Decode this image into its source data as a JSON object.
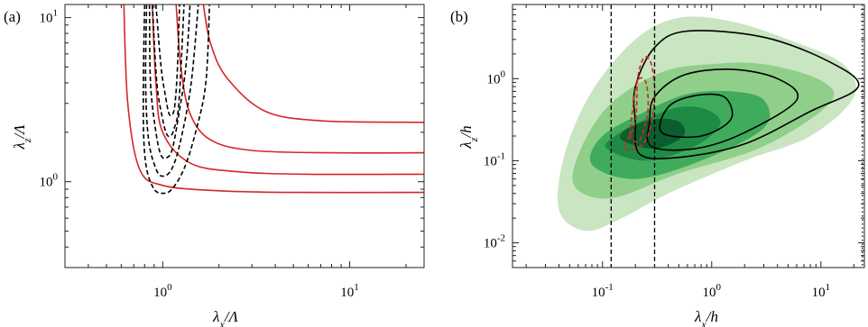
{
  "chart_data": [
    {
      "panel_label": "(a)",
      "type": "line",
      "xscale": "log",
      "yscale": "log",
      "xlim": [
        0.3,
        25
      ],
      "ylim": [
        0.3,
        12
      ],
      "xticks": [
        {
          "value": 1,
          "base": "10",
          "exp": "0"
        },
        {
          "value": 10,
          "base": "10",
          "exp": "1"
        }
      ],
      "yticks": [
        {
          "value": 1,
          "base": "10",
          "exp": "0"
        },
        {
          "value": 10,
          "base": "10",
          "exp": "1"
        }
      ],
      "xlabel": {
        "main": "λ",
        "sub": "x",
        "tail": "/Λ"
      },
      "ylabel": {
        "main": "λ",
        "sub": "z",
        "tail": "/Λ"
      },
      "grid": false,
      "series": [
        {
          "style": "solid",
          "color": "#d62728",
          "points": [
            [
              0.62,
              12
            ],
            [
              0.65,
              3
            ],
            [
              0.75,
              1.2
            ],
            [
              1.0,
              0.95
            ],
            [
              2,
              0.88
            ],
            [
              5,
              0.86
            ],
            [
              25,
              0.86
            ]
          ]
        },
        {
          "style": "solid",
          "color": "#d62728",
          "points": [
            [
              0.88,
              12
            ],
            [
              0.92,
              4
            ],
            [
              1.0,
              2.0
            ],
            [
              1.4,
              1.3
            ],
            [
              2.5,
              1.15
            ],
            [
              6,
              1.11
            ],
            [
              25,
              1.11
            ]
          ]
        },
        {
          "style": "solid",
          "color": "#d62728",
          "points": [
            [
              1.18,
              12
            ],
            [
              1.25,
              5
            ],
            [
              1.4,
              2.6
            ],
            [
              1.8,
              1.8
            ],
            [
              3,
              1.55
            ],
            [
              8,
              1.5
            ],
            [
              25,
              1.5
            ]
          ]
        },
        {
          "style": "solid",
          "color": "#d62728",
          "points": [
            [
              1.65,
              12
            ],
            [
              1.8,
              7
            ],
            [
              2.2,
              4.3
            ],
            [
              3.5,
              2.7
            ],
            [
              7,
              2.35
            ],
            [
              25,
              2.3
            ]
          ]
        },
        {
          "style": "dashed",
          "color": "#000000",
          "points": [
            [
              0.8,
              12
            ],
            [
              0.79,
              5
            ],
            [
              0.79,
              2
            ],
            [
              0.82,
              1.2
            ],
            [
              0.9,
              0.9
            ],
            [
              1.0,
              0.85
            ],
            [
              1.12,
              0.9
            ],
            [
              1.3,
              1.2
            ],
            [
              1.5,
              2
            ],
            [
              1.7,
              4
            ],
            [
              1.78,
              12
            ]
          ]
        },
        {
          "style": "dashed",
          "color": "#000000",
          "points": [
            [
              0.82,
              12
            ],
            [
              0.81,
              4
            ],
            [
              0.84,
              1.8
            ],
            [
              0.92,
              1.2
            ],
            [
              1.0,
              1.08
            ],
            [
              1.12,
              1.2
            ],
            [
              1.25,
              1.8
            ],
            [
              1.42,
              4
            ],
            [
              1.55,
              12
            ]
          ]
        },
        {
          "style": "dashed",
          "color": "#000000",
          "points": [
            [
              0.85,
              12
            ],
            [
              0.86,
              4
            ],
            [
              0.92,
              2.0
            ],
            [
              0.98,
              1.45
            ],
            [
              1.05,
              1.4
            ],
            [
              1.12,
              1.55
            ],
            [
              1.2,
              2.3
            ],
            [
              1.33,
              5
            ],
            [
              1.4,
              12
            ]
          ]
        },
        {
          "style": "dashed",
          "color": "#000000",
          "points": [
            [
              0.88,
              12
            ],
            [
              0.93,
              4
            ],
            [
              1.0,
              2.4
            ],
            [
              1.05,
              1.95
            ],
            [
              1.1,
              1.9
            ],
            [
              1.15,
              2.1
            ],
            [
              1.22,
              3
            ],
            [
              1.3,
              12
            ]
          ]
        },
        {
          "style": "dashed",
          "color": "#000000",
          "points": [
            [
              0.92,
              12
            ],
            [
              0.98,
              5
            ],
            [
              1.04,
              3.2
            ],
            [
              1.08,
              2.6
            ],
            [
              1.12,
              2.55
            ],
            [
              1.16,
              2.9
            ],
            [
              1.2,
              5
            ],
            [
              1.23,
              12
            ]
          ]
        }
      ]
    },
    {
      "panel_label": "(b)",
      "type": "area",
      "xscale": "log",
      "yscale": "log",
      "xlim": [
        0.015,
        25
      ],
      "ylim": [
        0.005,
        8
      ],
      "xticks": [
        {
          "value": 0.1,
          "base": "10",
          "exp": "-1"
        },
        {
          "value": 1,
          "base": "10",
          "exp": "0"
        },
        {
          "value": 10,
          "base": "10",
          "exp": "1"
        }
      ],
      "yticks": [
        {
          "value": 0.01,
          "base": "10",
          "exp": "-2"
        },
        {
          "value": 0.1,
          "base": "10",
          "exp": "-1"
        },
        {
          "value": 1,
          "base": "10",
          "exp": "0"
        }
      ],
      "xlabel": {
        "main": "λ",
        "sub": "x",
        "tail": "/h"
      },
      "ylabel": {
        "main": "λ",
        "sub": "z",
        "tail": "/h"
      },
      "grid": false,
      "filled_contours": [
        {
          "color": "#c9e5c1",
          "points": [
            [
              0.04,
              0.025
            ],
            [
              0.07,
              0.014
            ],
            [
              0.15,
              0.02
            ],
            [
              0.4,
              0.04
            ],
            [
              2,
              0.1
            ],
            [
              8,
              0.2
            ],
            [
              20,
              0.6
            ],
            [
              16,
              1.5
            ],
            [
              5,
              3.0
            ],
            [
              1.5,
              5.0
            ],
            [
              0.5,
              5.5
            ],
            [
              0.2,
              3.0
            ],
            [
              0.08,
              0.7
            ],
            [
              0.045,
              0.12
            ]
          ]
        },
        {
          "color": "#90cf8a",
          "points": [
            [
              0.055,
              0.05
            ],
            [
              0.12,
              0.035
            ],
            [
              0.5,
              0.07
            ],
            [
              3,
              0.15
            ],
            [
              12,
              0.5
            ],
            [
              10,
              0.95
            ],
            [
              3,
              1.5
            ],
            [
              1,
              1.5
            ],
            [
              0.35,
              1.2
            ],
            [
              0.12,
              0.5
            ],
            [
              0.065,
              0.15
            ]
          ]
        },
        {
          "color": "#41ab5d",
          "points": [
            [
              0.08,
              0.09
            ],
            [
              0.2,
              0.06
            ],
            [
              0.8,
              0.1
            ],
            [
              3,
              0.25
            ],
            [
              3,
              0.55
            ],
            [
              1.5,
              0.7
            ],
            [
              0.6,
              0.65
            ],
            [
              0.25,
              0.4
            ],
            [
              0.1,
              0.2
            ]
          ]
        },
        {
          "color": "#1f8a45",
          "points": [
            [
              0.11,
              0.14
            ],
            [
              0.25,
              0.1
            ],
            [
              0.7,
              0.15
            ],
            [
              1.2,
              0.28
            ],
            [
              0.9,
              0.42
            ],
            [
              0.5,
              0.45
            ],
            [
              0.25,
              0.32
            ],
            [
              0.13,
              0.2
            ]
          ]
        },
        {
          "color": "#0b5e2d",
          "points": [
            [
              0.15,
              0.18
            ],
            [
              0.3,
              0.14
            ],
            [
              0.55,
              0.2
            ],
            [
              0.5,
              0.3
            ],
            [
              0.3,
              0.32
            ],
            [
              0.17,
              0.25
            ]
          ]
        }
      ],
      "line_contours": [
        {
          "style": "solid",
          "color": "#000000",
          "points": [
            [
              0.22,
              0.12
            ],
            [
              0.5,
              0.11
            ],
            [
              2,
              0.16
            ],
            [
              8,
              0.4
            ],
            [
              22,
              0.8
            ],
            [
              12,
              1.6
            ],
            [
              3,
              3.2
            ],
            [
              0.6,
              3.8
            ],
            [
              0.3,
              2.4
            ],
            [
              0.2,
              0.8
            ],
            [
              0.2,
              0.3
            ]
          ]
        },
        {
          "style": "solid",
          "color": "#000000",
          "points": [
            [
              0.28,
              0.15
            ],
            [
              0.7,
              0.14
            ],
            [
              2,
              0.22
            ],
            [
              6,
              0.55
            ],
            [
              4,
              1.0
            ],
            [
              1.5,
              1.3
            ],
            [
              0.55,
              1.1
            ],
            [
              0.3,
              0.6
            ],
            [
              0.27,
              0.3
            ]
          ]
        },
        {
          "style": "solid",
          "color": "#000000",
          "points": [
            [
              0.35,
              0.22
            ],
            [
              0.8,
              0.2
            ],
            [
              1.5,
              0.32
            ],
            [
              1.3,
              0.6
            ],
            [
              0.7,
              0.62
            ],
            [
              0.4,
              0.45
            ]
          ]
        },
        {
          "style": "dashed",
          "color": "#d62728",
          "points": [
            [
              0.16,
              0.15
            ],
            [
              0.2,
              0.3
            ],
            [
              0.21,
              1.0
            ],
            [
              0.24,
              1.8
            ],
            [
              0.28,
              1.5
            ],
            [
              0.3,
              0.6
            ],
            [
              0.26,
              0.2
            ],
            [
              0.2,
              0.14
            ]
          ]
        },
        {
          "style": "dashed",
          "color": "#d62728",
          "points": [
            [
              0.18,
              0.2
            ],
            [
              0.19,
              0.45
            ],
            [
              0.21,
              0.95
            ],
            [
              0.25,
              0.9
            ],
            [
              0.26,
              0.4
            ],
            [
              0.22,
              0.18
            ]
          ]
        },
        {
          "style": "dashed",
          "color": "#000000",
          "points": [
            [
              0.12,
              8
            ],
            [
              0.12,
              0.005
            ]
          ]
        },
        {
          "style": "dashed",
          "color": "#000000",
          "points": [
            [
              0.3,
              8
            ],
            [
              0.3,
              0.005
            ]
          ]
        },
        {
          "style": "dotted",
          "color": "#000000",
          "points": [
            [
              24,
              8
            ],
            [
              24,
              0.005
            ]
          ]
        }
      ]
    }
  ]
}
